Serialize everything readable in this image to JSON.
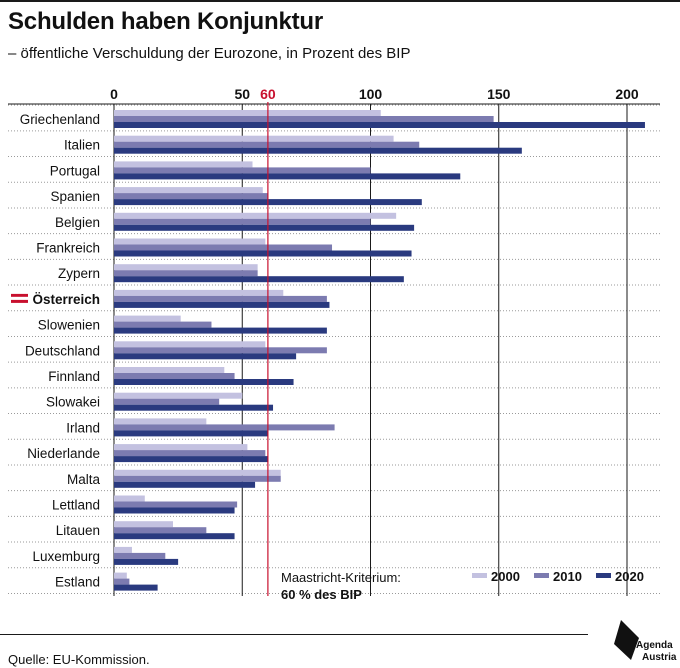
{
  "header": {
    "title": "Schulden haben Konjunktur",
    "subtitle": "– öffentliche Verschuldung der Eurozone, in Prozent des BIP"
  },
  "footer": {
    "source": "Quelle: EU-Kommission.",
    "logo_line1": "Agenda",
    "logo_line2": "Austria"
  },
  "chart_data": {
    "type": "bar",
    "orientation": "horizontal",
    "categories": [
      "Griechenland",
      "Italien",
      "Portugal",
      "Spanien",
      "Belgien",
      "Frankreich",
      "Zypern",
      "Österreich",
      "Slowenien",
      "Deutschland",
      "Finnland",
      "Slowakei",
      "Irland",
      "Niederlande",
      "Malta",
      "Lettland",
      "Litauen",
      "Luxemburg",
      "Estland"
    ],
    "highlight_category": "Österreich",
    "series": [
      {
        "name": "2000",
        "color": "#c3c1e0",
        "values": [
          104,
          109,
          54,
          58,
          110,
          59,
          56,
          66,
          26,
          59,
          43,
          50,
          36,
          52,
          65,
          12,
          23,
          7,
          5
        ]
      },
      {
        "name": "2010",
        "color": "#7c7bb0",
        "values": [
          148,
          119,
          100,
          60,
          100,
          85,
          56,
          83,
          38,
          83,
          47,
          41,
          86,
          59,
          65,
          48,
          36,
          20,
          6
        ]
      },
      {
        "name": "2020",
        "color": "#2a3a7f",
        "values": [
          207,
          159,
          135,
          120,
          117,
          116,
          113,
          84,
          83,
          71,
          70,
          62,
          60,
          60,
          55,
          47,
          47,
          25,
          17
        ]
      }
    ],
    "x_ticks": [
      0,
      50,
      100,
      150,
      200
    ],
    "xlim": [
      0,
      210
    ],
    "reference_line": {
      "value": 60,
      "label": "60",
      "color": "#c8102e"
    },
    "annotation": {
      "line1": "Maastricht-Kriterium:",
      "line2": "60 % des BIP"
    },
    "legend_position": "bottom-right",
    "grid": true
  }
}
